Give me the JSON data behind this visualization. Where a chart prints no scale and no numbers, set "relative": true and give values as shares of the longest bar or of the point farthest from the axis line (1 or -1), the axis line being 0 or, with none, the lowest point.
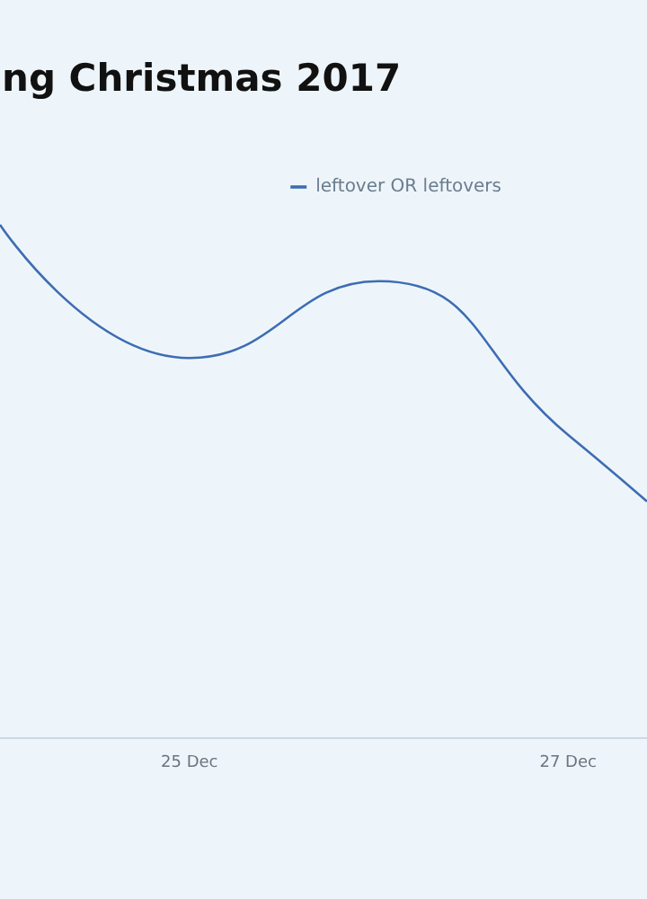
{
  "chart_data": {
    "type": "line",
    "title": "ng Christmas 2017",
    "relative": true,
    "x": [
      "2017-12-24",
      "2017-12-25",
      "2017-12-26",
      "2017-12-27",
      "2017-12-27T10:00"
    ],
    "series": [
      {
        "name": "leftover OR leftovers",
        "color": "#3d6db3",
        "values": [
          1,
          0.74,
          0.89,
          0.59,
          0.46
        ]
      }
    ],
    "xlim": [
      "2017-12-24",
      "2017-12-27T10:00"
    ],
    "xticks": [
      {
        "value": "2017-12-25",
        "label": "25 Dec"
      },
      {
        "value": "2017-12-27",
        "label": "27 Dec"
      }
    ],
    "grid": false,
    "legend": "top right"
  }
}
